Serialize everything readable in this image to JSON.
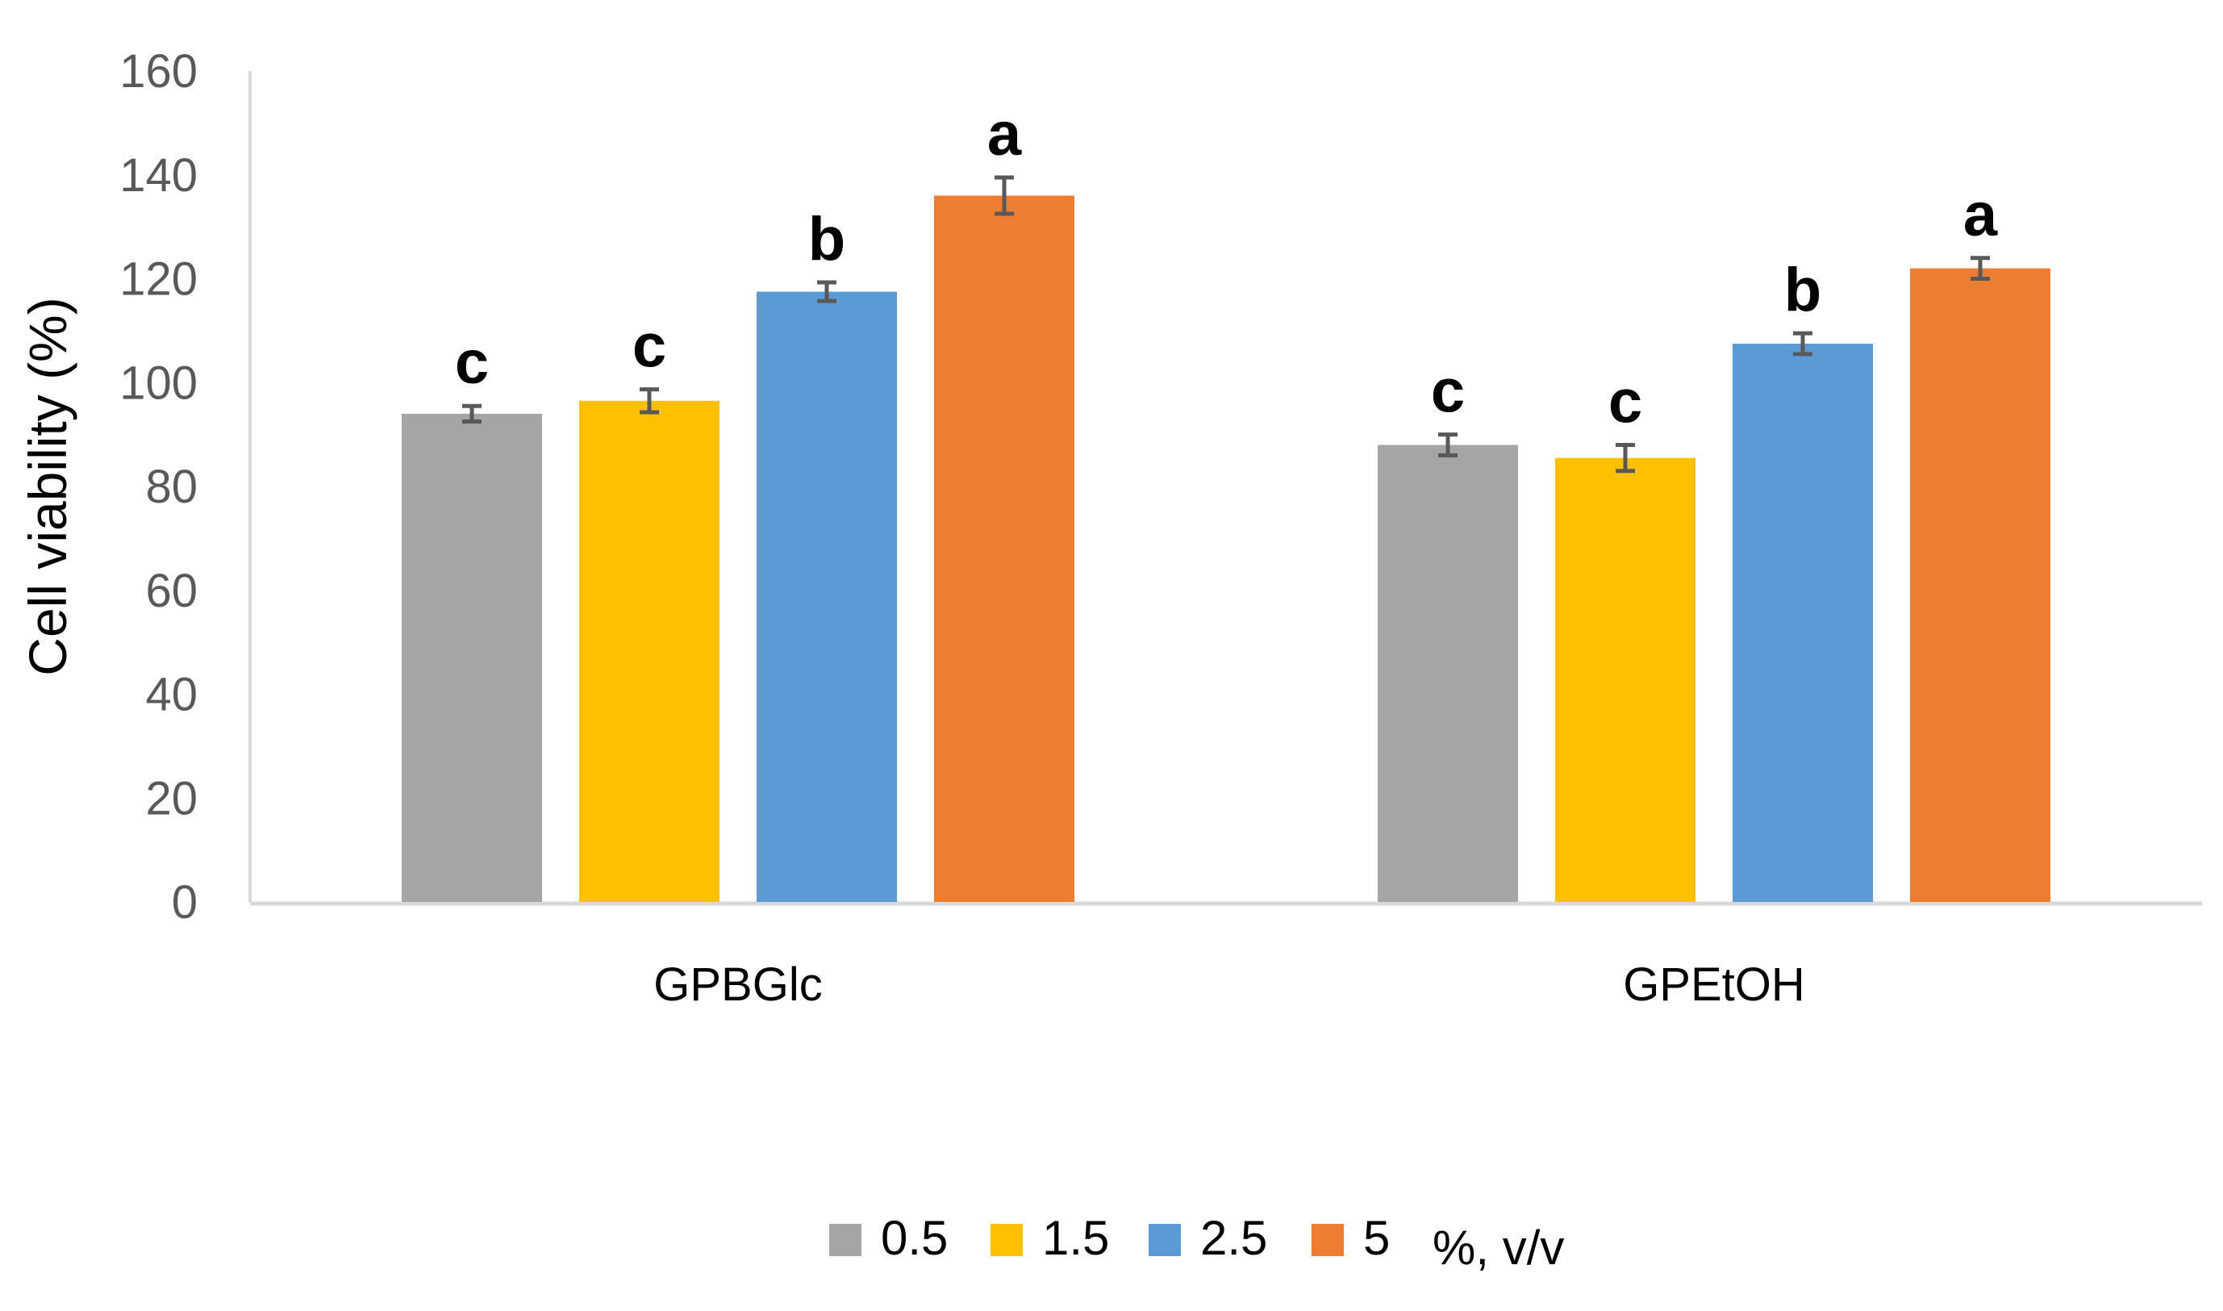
{
  "chart_data": {
    "type": "bar",
    "title": "",
    "xlabel": "",
    "ylabel": "Cell viability (%)",
    "ylim": [
      0,
      160
    ],
    "yticks": [
      0,
      20,
      40,
      60,
      80,
      100,
      120,
      140,
      160
    ],
    "grid": false,
    "legend_position": "bottom",
    "legend_suffix": "%, v/v",
    "categories": [
      "GPBGlc",
      "GPEtOH"
    ],
    "series": [
      {
        "name": "0.5",
        "color": "#A5A5A5",
        "values": [
          94,
          88
        ],
        "errors": [
          1.5,
          2
        ],
        "labels": [
          "c",
          "c"
        ]
      },
      {
        "name": "1.5",
        "color": "#FFC000",
        "values": [
          96.5,
          85.5
        ],
        "errors": [
          2.2,
          2.5
        ],
        "labels": [
          "c",
          "c"
        ]
      },
      {
        "name": "2.5",
        "color": "#5B9BD5",
        "values": [
          117.5,
          107.5
        ],
        "errors": [
          1.8,
          2
        ],
        "labels": [
          "b",
          "b"
        ]
      },
      {
        "name": "5",
        "color": "#ED7D31",
        "values": [
          136,
          122
        ],
        "errors": [
          3.5,
          2
        ],
        "labels": [
          "a",
          "a"
        ]
      }
    ]
  }
}
